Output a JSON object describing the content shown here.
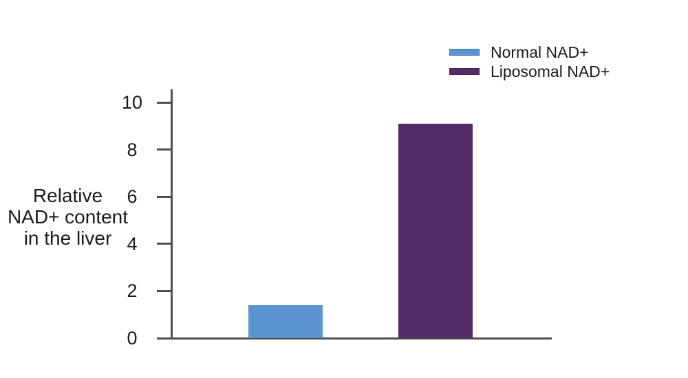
{
  "chart_data": {
    "type": "bar",
    "categories": [
      "Normal NAD+",
      "Liposomal NAD+"
    ],
    "values": [
      1.4,
      9.1
    ],
    "bar_colors": [
      "#5B95D1",
      "#542D68"
    ],
    "title": "",
    "xlabel": "",
    "ylabel": "Relative NAD+ content in the liver",
    "ylabel_lines": [
      "Relative",
      "NAD+ content",
      "in the liver"
    ],
    "ylim": [
      0,
      10
    ],
    "yticks": [
      0,
      2,
      4,
      6,
      8,
      10
    ],
    "grid": false,
    "legend_position": "top-right",
    "legend": [
      {
        "label": "Normal NAD+",
        "color": "#5B95D1"
      },
      {
        "label": "Liposomal NAD+",
        "color": "#542D68"
      }
    ]
  },
  "colors": {
    "axis": "#4F4C51",
    "text": "#1A1A1A",
    "background": "#FFFFFF"
  }
}
